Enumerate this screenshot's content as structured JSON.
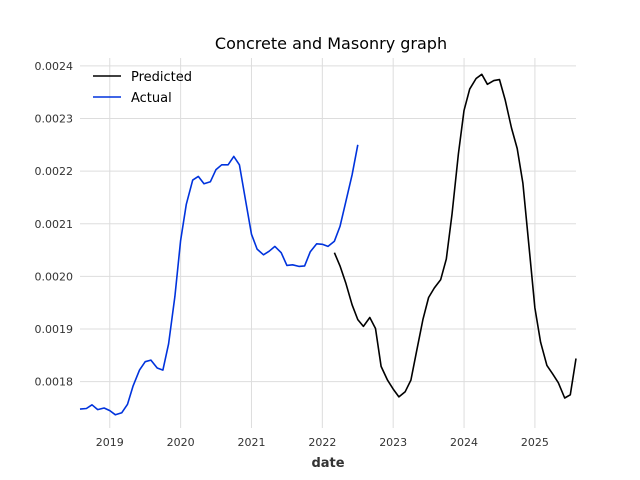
{
  "chart_data": {
    "type": "line",
    "title": "Concrete and Masonry graph",
    "xlabel": "date",
    "ylabel": "",
    "xlim": [
      2018.58,
      2025.58
    ],
    "ylim": [
      0.001712,
      0.002415
    ],
    "grid": true,
    "legend_position": "top-left",
    "x_ticks": [
      2019,
      2020,
      2021,
      2022,
      2023,
      2024,
      2025
    ],
    "x_tick_labels": [
      "2019",
      "2020",
      "2021",
      "2022",
      "2023",
      "2024",
      "2025"
    ],
    "y_ticks": [
      0.0018,
      0.0019,
      0.002,
      0.0021,
      0.0022,
      0.0023,
      0.0024
    ],
    "y_tick_labels": [
      "0.0018",
      "0.0019",
      "0.0020",
      "0.0021",
      "0.0022",
      "0.0023",
      "0.0024"
    ],
    "series": [
      {
        "name": "Predicted",
        "color": "#000000",
        "x": [
          2022.17,
          2022.25,
          2022.33,
          2022.42,
          2022.5,
          2022.58,
          2022.67,
          2022.75,
          2022.83,
          2022.92,
          2023.0,
          2023.08,
          2023.17,
          2023.25,
          2023.33,
          2023.42,
          2023.5,
          2023.58,
          2023.67,
          2023.75,
          2023.83,
          2023.92,
          2024.0,
          2024.08,
          2024.17,
          2024.25,
          2024.33,
          2024.42,
          2024.5,
          2024.58,
          2024.67,
          2024.75,
          2024.83,
          2024.92,
          2025.0,
          2025.08,
          2025.17,
          2025.25,
          2025.33,
          2025.42,
          2025.5,
          2025.58
        ],
        "y": [
          0.002045,
          0.00202,
          0.001988,
          0.001946,
          0.001918,
          0.001905,
          0.001922,
          0.001901,
          0.001829,
          0.001803,
          0.001786,
          0.001771,
          0.001781,
          0.001803,
          0.001858,
          0.001918,
          0.00196,
          0.001978,
          0.001994,
          0.002033,
          0.002118,
          0.002233,
          0.002315,
          0.002356,
          0.002376,
          0.002384,
          0.002365,
          0.002372,
          0.002374,
          0.002336,
          0.002282,
          0.002243,
          0.002177,
          0.002053,
          0.00194,
          0.001875,
          0.001831,
          0.001815,
          0.001798,
          0.001769,
          0.001775,
          0.001844
        ]
      },
      {
        "name": "Actual",
        "color": "#0033dd",
        "x": [
          2018.58,
          2018.67,
          2018.75,
          2018.83,
          2018.92,
          2019.0,
          2019.08,
          2019.17,
          2019.25,
          2019.33,
          2019.42,
          2019.5,
          2019.58,
          2019.67,
          2019.75,
          2019.83,
          2019.92,
          2020.0,
          2020.08,
          2020.17,
          2020.25,
          2020.33,
          2020.42,
          2020.5,
          2020.58,
          2020.67,
          2020.75,
          2020.83,
          2020.92,
          2021.0,
          2021.08,
          2021.17,
          2021.25,
          2021.33,
          2021.42,
          2021.5,
          2021.58,
          2021.67,
          2021.75,
          2021.83,
          2021.92,
          2022.0,
          2022.08,
          2022.17,
          2022.25,
          2022.33,
          2022.42,
          2022.5
        ],
        "y": [
          0.001748,
          0.001749,
          0.001756,
          0.001747,
          0.00175,
          0.001745,
          0.001737,
          0.001741,
          0.001757,
          0.001792,
          0.001822,
          0.001838,
          0.001841,
          0.001826,
          0.001822,
          0.001872,
          0.001962,
          0.002068,
          0.002137,
          0.002183,
          0.00219,
          0.002176,
          0.00218,
          0.002203,
          0.002212,
          0.002212,
          0.002228,
          0.002212,
          0.002142,
          0.00208,
          0.002052,
          0.002041,
          0.002048,
          0.002057,
          0.002045,
          0.002021,
          0.002022,
          0.002019,
          0.00202,
          0.002047,
          0.002062,
          0.002061,
          0.002057,
          0.002067,
          0.002095,
          0.002141,
          0.002193,
          0.00225
        ]
      }
    ]
  }
}
